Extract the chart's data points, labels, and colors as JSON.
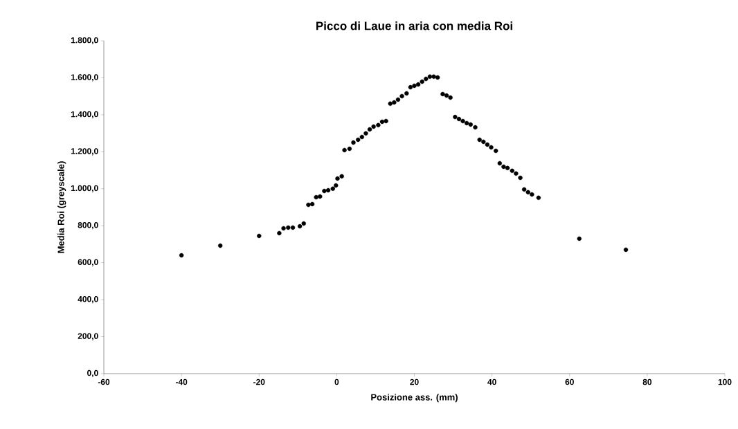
{
  "chart_data": {
    "type": "scatter",
    "title": "Picco di Laue in aria con media Roi",
    "xlabel": "Posizione ass. (mm)",
    "ylabel": "Media Roi (greyscale)",
    "xlim": [
      -60,
      100
    ],
    "xticks": [
      -60,
      -40,
      -20,
      0,
      20,
      40,
      60,
      80,
      100
    ],
    "ylim": [
      0,
      1800
    ],
    "yticks": [
      {
        "value": 0,
        "label": "0,0"
      },
      {
        "value": 200,
        "label": "200,0"
      },
      {
        "value": 400,
        "label": "400,0"
      },
      {
        "value": 600,
        "label": "600,0"
      },
      {
        "value": 800,
        "label": "800,0"
      },
      {
        "value": 1000,
        "label": "1.000,0"
      },
      {
        "value": 1200,
        "label": "1.200,0"
      },
      {
        "value": 1400,
        "label": "1.400,0"
      },
      {
        "value": 1600,
        "label": "1.600,0"
      },
      {
        "value": 1800,
        "label": "1.800,0"
      }
    ],
    "grid": false,
    "marker": "circle",
    "series": [
      {
        "color": "#000000",
        "x": [
          -40,
          -30,
          -20,
          -14.8,
          -13.7,
          -12.5,
          -11.3,
          -9.5,
          -8.5,
          -7.3,
          -6.3,
          -5.3,
          -4.3,
          -3.2,
          -2.2,
          -1,
          -0.2,
          0.2,
          1.3,
          2,
          3.3,
          4.3,
          5.5,
          6.5,
          7.5,
          8.5,
          9.5,
          10.7,
          11.7,
          12.7,
          13.8,
          14.8,
          15.8,
          16.8,
          18,
          19,
          20,
          21,
          22,
          23,
          24,
          25,
          26,
          27.3,
          28.3,
          29.3,
          30.5,
          31.5,
          32.5,
          33.5,
          34.5,
          35.7,
          36.8,
          37.8,
          38.8,
          39.8,
          41,
          42,
          43,
          44,
          45.2,
          46.2,
          47.3,
          48.3,
          49.3,
          50.3,
          52,
          62.5,
          74.5
        ],
        "values": [
          640,
          692,
          745,
          760,
          786,
          790,
          790,
          797,
          812,
          913,
          917,
          954,
          958,
          988,
          992,
          1000,
          1018,
          1055,
          1067,
          1209,
          1216,
          1250,
          1265,
          1280,
          1299,
          1321,
          1336,
          1344,
          1362,
          1366,
          1460,
          1467,
          1482,
          1501,
          1516,
          1549,
          1557,
          1564,
          1579,
          1594,
          1606,
          1606,
          1602,
          1512,
          1504,
          1493,
          1388,
          1377,
          1366,
          1355,
          1347,
          1332,
          1265,
          1254,
          1239,
          1224,
          1205,
          1138,
          1119,
          1112,
          1097,
          1082,
          1059,
          996,
          981,
          969,
          951,
          730,
          670
        ]
      }
    ]
  }
}
